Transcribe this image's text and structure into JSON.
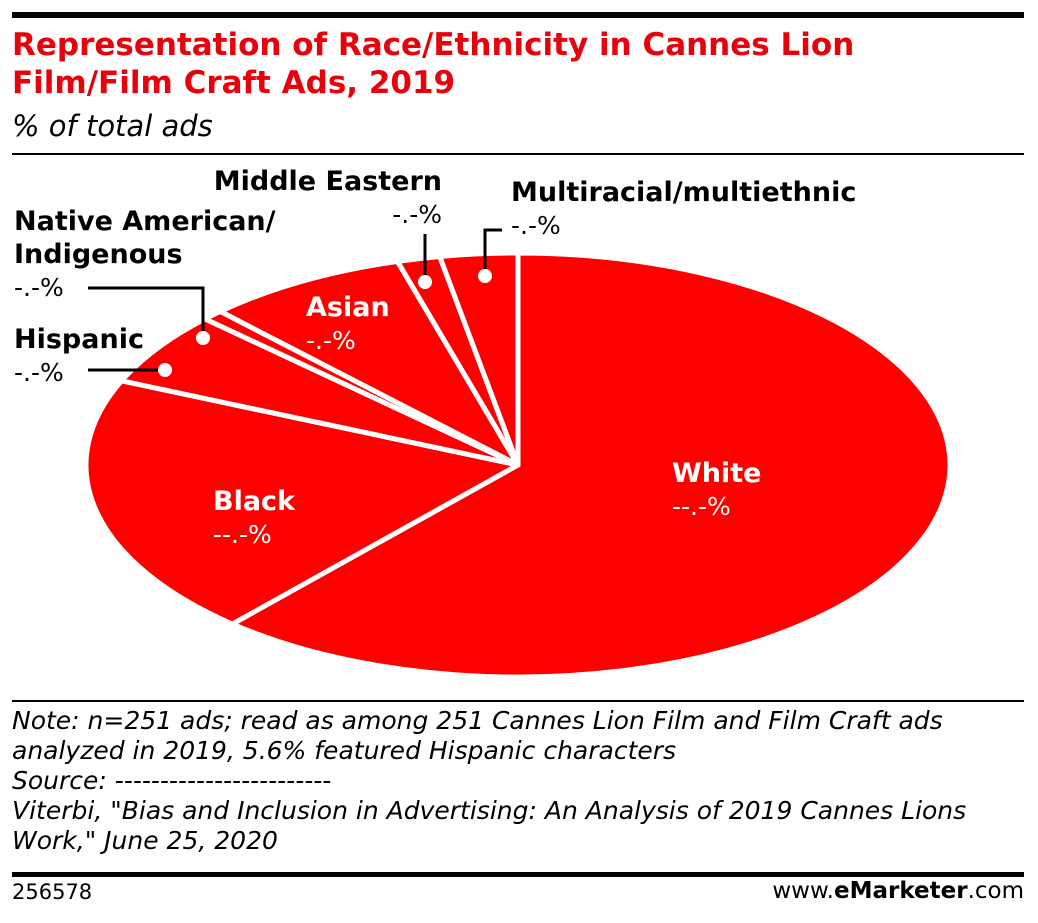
{
  "header": {
    "title": "Representation of Race/Ethnicity in Cannes Lion Film/Film Craft Ads, 2019",
    "subtitle": "% of total ads"
  },
  "colors": {
    "accent": "#e8000b",
    "slice": "#ff0000",
    "separator": "#ffffff",
    "text": "#000000"
  },
  "chart_data": {
    "type": "pie",
    "title": "Representation of Race/Ethnicity in Cannes Lion Film/Film Craft Ads, 2019",
    "subtitle": "% of total ads",
    "slices": [
      {
        "name": "White",
        "value_label": "--.-%",
        "value": 61.5
      },
      {
        "name": "Black",
        "value_label": "--.-%",
        "value": 20.0
      },
      {
        "name": "Hispanic",
        "value_label": "-.-%",
        "value": 5.6
      },
      {
        "name": "Native American/ Indigenous",
        "value_label": "-.-%",
        "value": 0.8
      },
      {
        "name": "Asian",
        "value_label": "-.-%",
        "value": 7.6
      },
      {
        "name": "Middle Eastern",
        "value_label": "-.-%",
        "value": 1.6
      },
      {
        "name": "Multiracial/multiethnic",
        "value_label": "-.-%",
        "value": 2.9
      }
    ]
  },
  "notes": {
    "line1": "Note: n=251 ads; read as among 251 Cannes Lion Film and Film Craft ads",
    "line2": "analyzed in 2019, 5.6% featured Hispanic characters",
    "line3": "Source: ------------------------",
    "line4": "Viterbi, \"Bias and Inclusion in Advertising: An Analysis of 2019 Cannes Lions",
    "line5": "Work,\" June 25, 2020"
  },
  "footer": {
    "chart_id": "256578",
    "brand_prefix": "www.",
    "brand_bold": "eMarketer",
    "brand_suffix": ".com"
  }
}
